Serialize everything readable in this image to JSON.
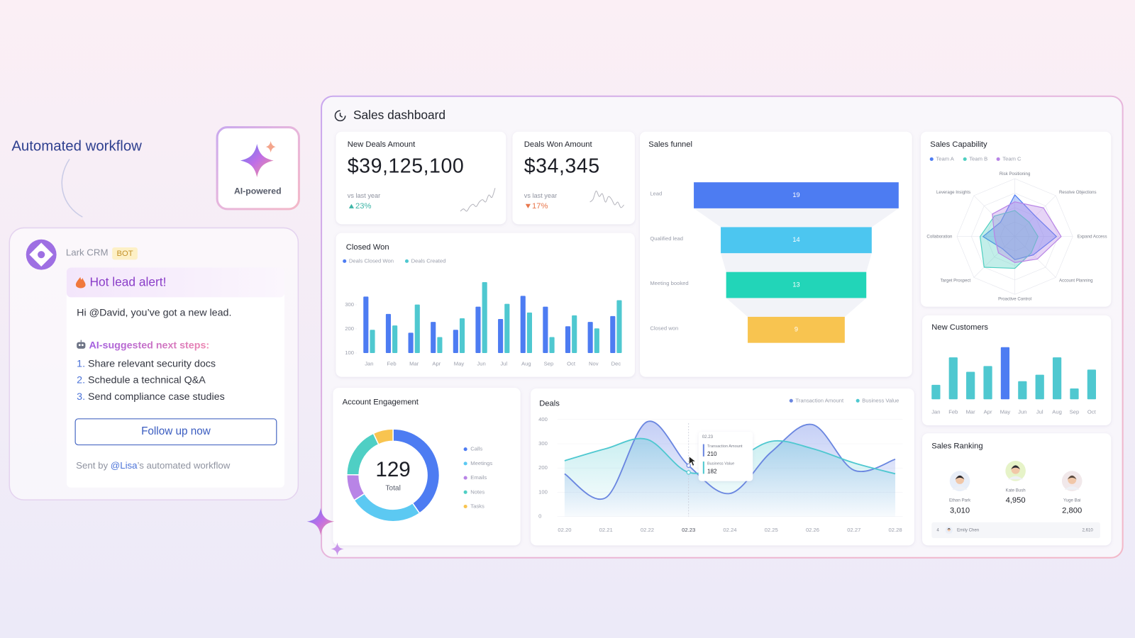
{
  "workflow_label": "Automated workflow",
  "ai_badge": "AI-powered",
  "message": {
    "app": "Lark CRM",
    "tag": "BOT",
    "alert": "Hot lead alert!",
    "greeting": "Hi @David, you’ve got a new lead.",
    "steps_title": "AI-suggested next steps:",
    "steps": [
      {
        "number": "1.",
        "text": "Share relevant security docs"
      },
      {
        "number": "2.",
        "text": "Schedule a technical Q&A"
      },
      {
        "number": "3.",
        "text": "Send compliance case studies"
      }
    ],
    "button": "Follow up now",
    "footer": {
      "prefix": "Sent by",
      "mention": "@Lisa",
      "suffix": "’s automated workflow"
    }
  },
  "dashboard": {
    "title": "Sales dashboard",
    "kpis": [
      {
        "title": "New Deals Amount",
        "value": "$39,125,100",
        "compare": "vs last year",
        "change": "23%",
        "trend": "up",
        "color": "#3db5a6"
      },
      {
        "title": "Deals Won Amount",
        "value": "$34,345",
        "compare": "vs last year",
        "change": "17%",
        "trend": "down",
        "color": "#e8774c"
      }
    ],
    "ranking": {
      "title": "Sales Ranking",
      "top": [
        {
          "name": "Ethan Park",
          "value": "3,010"
        },
        {
          "name": "Kate Bush",
          "value": "4,950"
        },
        {
          "name": "Yuge Bai",
          "value": "2,800"
        }
      ],
      "others": [
        {
          "rank": "4",
          "name": "Emily Chen",
          "value": "2,610"
        }
      ]
    }
  },
  "chart_data": [
    {
      "type": "bar",
      "title": "Closed Won",
      "categories": [
        "Jan",
        "Feb",
        "Mar",
        "Apr",
        "May",
        "Jun",
        "Jul",
        "Aug",
        "Sep",
        "Oct",
        "Nov",
        "Dec"
      ],
      "series": [
        {
          "name": "Deals Closed Won",
          "color": "#4d7cf2",
          "values": [
            334,
            262,
            184,
            229,
            196,
            292,
            241,
            337,
            292,
            211,
            229,
            253
          ]
        },
        {
          "name": "Deals Created",
          "color": "#4fc8d0",
          "values": [
            196,
            214,
            301,
            166,
            244,
            394,
            304,
            268,
            166,
            256,
            202,
            319
          ]
        }
      ],
      "ylim": [
        100,
        400
      ],
      "yticks": [
        100,
        200,
        300
      ]
    },
    {
      "type": "funnel",
      "title": "Sales funnel",
      "categories": [
        "Lead",
        "Qualified lead",
        "Meeting booked",
        "Closed won"
      ],
      "values": [
        19,
        14,
        13,
        9
      ],
      "colors": [
        "#4d7cf2",
        "#4cc6f0",
        "#22d5b8",
        "#f8c450"
      ]
    },
    {
      "type": "radar",
      "title": "Sales Capability",
      "categories": [
        "Risk Positioning",
        "Resolve Objections",
        "Expand Access",
        "Account Planning",
        "Proactive Control",
        "Target Prospect",
        "Collaboration",
        "Leverage Insights"
      ],
      "series": [
        {
          "name": "Team A",
          "color": "#4d7cf2",
          "values": [
            72,
            50,
            72,
            45,
            40,
            30,
            55,
            35
          ]
        },
        {
          "name": "Team B",
          "color": "#4fcfc0",
          "values": [
            45,
            35,
            40,
            40,
            55,
            75,
            60,
            50
          ]
        },
        {
          "name": "Team C",
          "color": "#b884e6",
          "values": [
            60,
            70,
            80,
            55,
            45,
            40,
            35,
            55
          ]
        }
      ],
      "rlim": [
        0,
        100
      ]
    },
    {
      "type": "bar",
      "title": "New Customers",
      "categories": [
        "Jan",
        "Feb",
        "Mar",
        "Apr",
        "May",
        "Jun",
        "Jul",
        "Aug",
        "Sep",
        "Oct"
      ],
      "values": [
        20,
        58,
        38,
        46,
        72,
        25,
        34,
        58,
        15,
        41
      ],
      "colors": [
        "#4fc8d0",
        "#4fc8d0",
        "#4fc8d0",
        "#4fc8d0",
        "#4d7cf2",
        "#4fc8d0",
        "#4fc8d0",
        "#4fc8d0",
        "#4fc8d0",
        "#4fc8d0"
      ]
    },
    {
      "type": "donut",
      "title": "Account Engagement",
      "categories": [
        "Calls",
        "Meetings",
        "Emails",
        "Notes",
        "Tasks"
      ],
      "values": [
        52,
        33,
        12,
        23,
        9
      ],
      "colors": [
        "#4d7cf2",
        "#5cc9f2",
        "#b884e6",
        "#4fcfc4",
        "#f8c450"
      ],
      "total": 129,
      "total_label": "Total"
    },
    {
      "type": "line",
      "title": "Deals",
      "categories": [
        "02.20",
        "02.21",
        "02.22",
        "02.23",
        "02.24",
        "02.25",
        "02.26",
        "02.27",
        "02.28"
      ],
      "series": [
        {
          "name": "Transaction Amount",
          "color": "#6a86e0",
          "values": [
            176,
            78,
            391,
            210,
            95,
            266,
            379,
            191,
            236
          ]
        },
        {
          "name": "Business Value",
          "color": "#4fc8d0",
          "values": [
            230,
            280,
            318,
            182,
            221,
            310,
            280,
            221,
            176
          ]
        }
      ],
      "ylim": [
        0,
        400
      ],
      "yticks": [
        0,
        100,
        200,
        300,
        400
      ],
      "tooltip": {
        "category": "02.23",
        "items": [
          {
            "name": "Transaction Amount",
            "value": 210
          },
          {
            "name": "Business Value",
            "value": 182
          }
        ]
      }
    },
    {
      "type": "sparkline",
      "color": "#b4b4bc",
      "values": [
        2,
        3,
        2,
        4,
        5,
        4,
        6,
        7,
        6,
        9,
        8,
        12
      ]
    },
    {
      "type": "sparkline",
      "color": "#b4b4bc",
      "values": [
        5,
        6,
        9,
        7,
        8,
        5,
        7,
        6,
        4,
        5,
        3,
        4
      ]
    }
  ]
}
